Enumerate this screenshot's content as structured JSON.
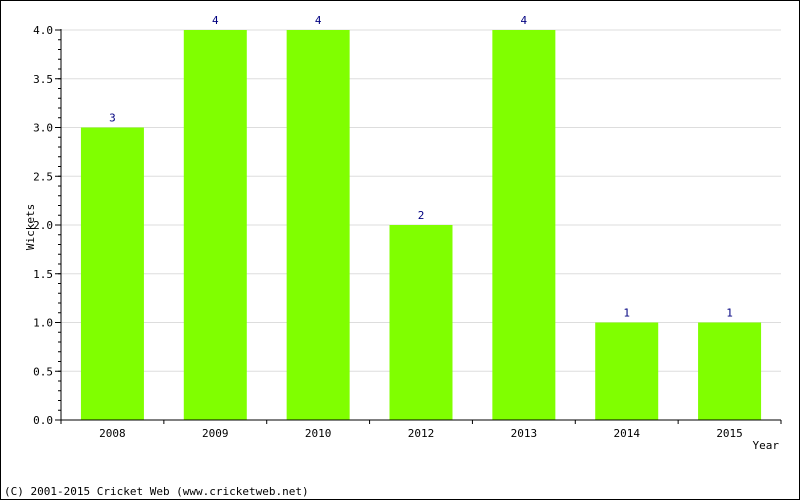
{
  "chart_data": {
    "type": "bar",
    "categories": [
      "2008",
      "2009",
      "2010",
      "2012",
      "2013",
      "2014",
      "2015"
    ],
    "values": [
      3,
      4,
      4,
      2,
      4,
      1,
      1
    ],
    "data_labels": [
      "3",
      "4",
      "4",
      "2",
      "4",
      "1",
      "1"
    ],
    "xlabel": "Year",
    "ylabel": "Wickets",
    "ylim": [
      0,
      4
    ],
    "yticks": [
      "0.0",
      "0.5",
      "1.0",
      "1.5",
      "2.0",
      "2.5",
      "3.0",
      "3.5",
      "4.0"
    ],
    "grid": true,
    "bar_color": "#80ff00",
    "label_color": "#000080",
    "grid_color": "#dddddd"
  },
  "footer": {
    "copyright": "(C) 2001-2015 Cricket Web (www.cricketweb.net)"
  }
}
